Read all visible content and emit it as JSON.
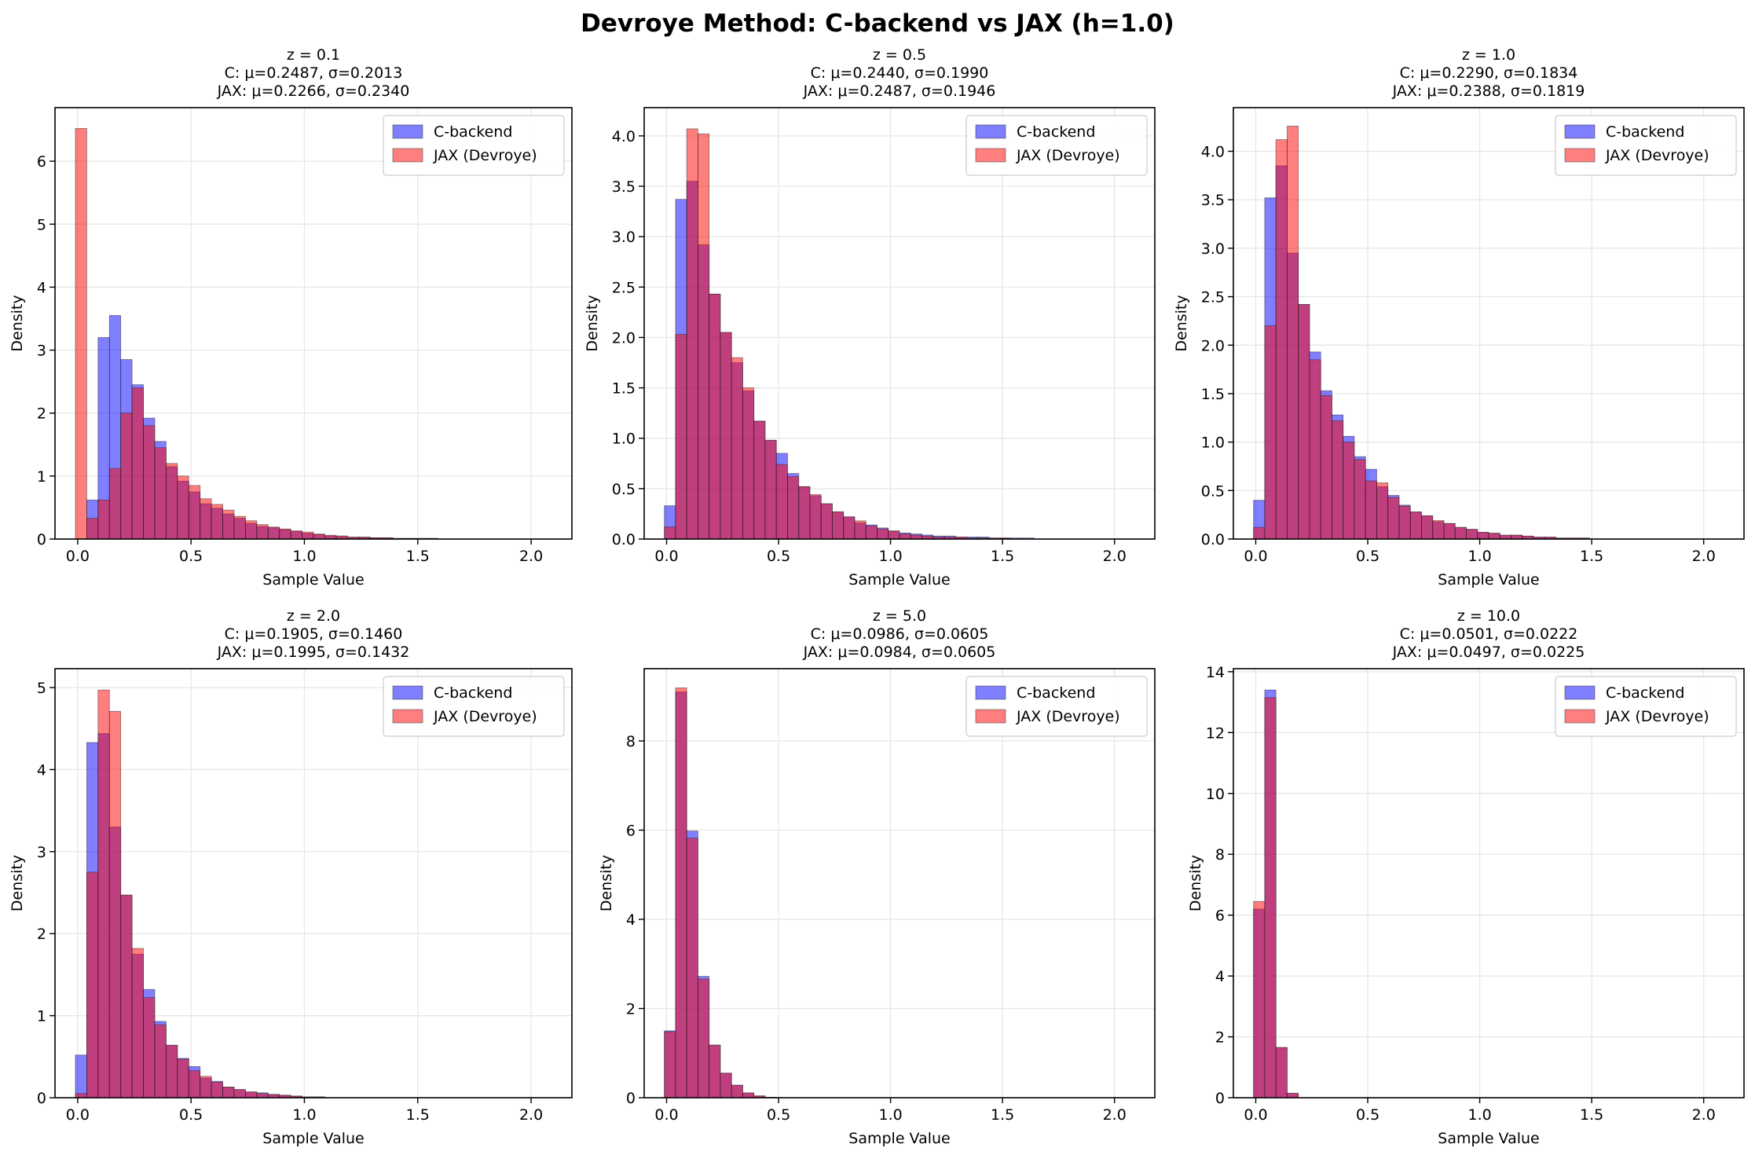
{
  "figure": {
    "suptitle": "Devroye Method: C-backend vs JAX (h=1.0)"
  },
  "colors": {
    "c_backend": "#0000ff",
    "jax": "#ff0000",
    "overlap": "#8b1a4f",
    "grid": "#e5e5e5"
  },
  "legend": [
    "C-backend",
    "JAX (Devroye)"
  ],
  "chart_data": [
    {
      "type": "bar",
      "title_lines": [
        "z = 0.1",
        "C: μ=0.2487, σ=0.2013",
        "JAX: μ=0.2266, σ=0.2340"
      ],
      "xlabel": "Sample Value",
      "ylabel": "Density",
      "xlim": [
        -0.1,
        2.18
      ],
      "ylim": [
        0,
        6.85
      ],
      "xticks": [
        0.0,
        0.5,
        1.0,
        1.5,
        2.0
      ],
      "xtick_labels": [
        "0.0",
        "0.5",
        "1.0",
        "1.5",
        "2.0"
      ],
      "yticks": [
        0,
        1,
        2,
        3,
        4,
        5,
        6
      ],
      "ytick_labels": [
        "0",
        "1",
        "2",
        "3",
        "4",
        "5",
        "6"
      ],
      "legend_position": "top-right",
      "grid": true,
      "bin_width": 0.05,
      "bin_start": -0.01,
      "series": [
        {
          "name": "C-backend",
          "values": [
            0.0,
            0.62,
            3.2,
            3.55,
            2.85,
            2.45,
            1.92,
            1.55,
            1.15,
            0.92,
            0.75,
            0.56,
            0.49,
            0.4,
            0.33,
            0.25,
            0.2,
            0.18,
            0.15,
            0.12,
            0.09,
            0.07,
            0.05,
            0.04,
            0.03,
            0.03,
            0.02,
            0.02,
            0.01,
            0.01,
            0.01,
            0.01,
            0.0,
            0.0,
            0.0,
            0.0,
            0.0,
            0.0,
            0.0,
            0.0,
            0.0,
            0.0
          ]
        },
        {
          "name": "JAX (Devroye)",
          "values": [
            6.52,
            0.33,
            0.62,
            1.12,
            2.0,
            2.4,
            1.8,
            1.45,
            1.2,
            1.0,
            0.85,
            0.64,
            0.55,
            0.46,
            0.36,
            0.29,
            0.23,
            0.19,
            0.16,
            0.13,
            0.11,
            0.08,
            0.06,
            0.05,
            0.03,
            0.03,
            0.02,
            0.02,
            0.01,
            0.01,
            0.01,
            0.01,
            0.0,
            0.0,
            0.0,
            0.0,
            0.0,
            0.0,
            0.0,
            0.0,
            0.0,
            0.0
          ]
        }
      ]
    },
    {
      "type": "bar",
      "title_lines": [
        "z = 0.5",
        "C: μ=0.2440, σ=0.1990",
        "JAX: μ=0.2487, σ=0.1946"
      ],
      "xlabel": "Sample Value",
      "ylabel": "Density",
      "xlim": [
        -0.1,
        2.18
      ],
      "ylim": [
        0,
        4.28
      ],
      "xticks": [
        0.0,
        0.5,
        1.0,
        1.5,
        2.0
      ],
      "xtick_labels": [
        "0.0",
        "0.5",
        "1.0",
        "1.5",
        "2.0"
      ],
      "yticks": [
        0.0,
        0.5,
        1.0,
        1.5,
        2.0,
        2.5,
        3.0,
        3.5,
        4.0
      ],
      "ytick_labels": [
        "0.0",
        "0.5",
        "1.0",
        "1.5",
        "2.0",
        "2.5",
        "3.0",
        "3.5",
        "4.0"
      ],
      "legend_position": "top-right",
      "grid": true,
      "bin_width": 0.05,
      "bin_start": -0.01,
      "series": [
        {
          "name": "C-backend",
          "values": [
            0.33,
            3.37,
            3.55,
            2.92,
            2.43,
            2.05,
            1.75,
            1.47,
            1.17,
            0.98,
            0.85,
            0.65,
            0.52,
            0.43,
            0.35,
            0.27,
            0.22,
            0.16,
            0.14,
            0.11,
            0.08,
            0.06,
            0.05,
            0.04,
            0.03,
            0.03,
            0.02,
            0.02,
            0.02,
            0.01,
            0.01,
            0.01,
            0.01,
            0.0,
            0.0,
            0.0,
            0.0,
            0.0,
            0.0,
            0.0,
            0.0,
            0.0
          ]
        },
        {
          "name": "JAX (Devroye)",
          "values": [
            0.12,
            2.03,
            4.07,
            4.02,
            2.43,
            2.05,
            1.8,
            1.5,
            1.17,
            0.98,
            0.74,
            0.62,
            0.52,
            0.44,
            0.35,
            0.27,
            0.22,
            0.18,
            0.13,
            0.1,
            0.08,
            0.05,
            0.04,
            0.03,
            0.02,
            0.02,
            0.02,
            0.01,
            0.01,
            0.01,
            0.01,
            0.0,
            0.0,
            0.0,
            0.0,
            0.0,
            0.0,
            0.0,
            0.0,
            0.0,
            0.0,
            0.0
          ]
        }
      ]
    },
    {
      "type": "bar",
      "title_lines": [
        "z = 1.0",
        "C: μ=0.2290, σ=0.1834",
        "JAX: μ=0.2388, σ=0.1819"
      ],
      "xlabel": "Sample Value",
      "ylabel": "Density",
      "xlim": [
        -0.1,
        2.18
      ],
      "ylim": [
        0,
        4.45
      ],
      "xticks": [
        0.0,
        0.5,
        1.0,
        1.5,
        2.0
      ],
      "xtick_labels": [
        "0.0",
        "0.5",
        "1.0",
        "1.5",
        "2.0"
      ],
      "yticks": [
        0.0,
        0.5,
        1.0,
        1.5,
        2.0,
        2.5,
        3.0,
        3.5,
        4.0
      ],
      "ytick_labels": [
        "0.0",
        "0.5",
        "1.0",
        "1.5",
        "2.0",
        "2.5",
        "3.0",
        "3.5",
        "4.0"
      ],
      "legend_position": "top-right",
      "grid": true,
      "bin_width": 0.05,
      "bin_start": -0.01,
      "series": [
        {
          "name": "C-backend",
          "values": [
            0.4,
            3.52,
            3.85,
            2.95,
            2.42,
            1.93,
            1.53,
            1.28,
            1.06,
            0.85,
            0.72,
            0.54,
            0.45,
            0.35,
            0.28,
            0.24,
            0.18,
            0.16,
            0.12,
            0.1,
            0.07,
            0.06,
            0.04,
            0.04,
            0.03,
            0.02,
            0.02,
            0.01,
            0.01,
            0.01,
            0.0,
            0.0,
            0.0,
            0.0,
            0.0,
            0.0,
            0.0,
            0.0,
            0.0,
            0.0,
            0.0,
            0.0
          ]
        },
        {
          "name": "JAX (Devroye)",
          "values": [
            0.12,
            2.2,
            4.12,
            4.26,
            2.42,
            1.85,
            1.48,
            1.22,
            1.0,
            0.82,
            0.6,
            0.58,
            0.43,
            0.34,
            0.28,
            0.24,
            0.19,
            0.16,
            0.12,
            0.1,
            0.07,
            0.06,
            0.04,
            0.04,
            0.03,
            0.02,
            0.02,
            0.01,
            0.01,
            0.01,
            0.0,
            0.0,
            0.0,
            0.0,
            0.0,
            0.0,
            0.0,
            0.0,
            0.0,
            0.0,
            0.0,
            0.0
          ]
        }
      ]
    },
    {
      "type": "bar",
      "title_lines": [
        "z = 2.0",
        "C: μ=0.1905, σ=0.1460",
        "JAX: μ=0.1995, σ=0.1432"
      ],
      "xlabel": "Sample Value",
      "ylabel": "Density",
      "xlim": [
        -0.1,
        2.18
      ],
      "ylim": [
        0,
        5.23
      ],
      "xticks": [
        0.0,
        0.5,
        1.0,
        1.5,
        2.0
      ],
      "xtick_labels": [
        "0.0",
        "0.5",
        "1.0",
        "1.5",
        "2.0"
      ],
      "yticks": [
        0,
        1,
        2,
        3,
        4,
        5
      ],
      "ytick_labels": [
        "0",
        "1",
        "2",
        "3",
        "4",
        "5"
      ],
      "legend_position": "top-right",
      "grid": true,
      "bin_width": 0.05,
      "bin_start": -0.01,
      "series": [
        {
          "name": "C-backend",
          "values": [
            0.52,
            4.33,
            4.44,
            3.3,
            2.47,
            1.75,
            1.32,
            0.93,
            0.64,
            0.48,
            0.38,
            0.24,
            0.2,
            0.13,
            0.1,
            0.07,
            0.06,
            0.04,
            0.03,
            0.02,
            0.01,
            0.01,
            0.0,
            0.0,
            0.0,
            0.0,
            0.0,
            0.0,
            0.0,
            0.0,
            0.0,
            0.0,
            0.0,
            0.0,
            0.0,
            0.0,
            0.0,
            0.0,
            0.0,
            0.0,
            0.0,
            0.0
          ]
        },
        {
          "name": "JAX (Devroye)",
          "values": [
            0.05,
            2.75,
            4.97,
            4.71,
            2.47,
            1.82,
            1.22,
            0.89,
            0.64,
            0.47,
            0.33,
            0.26,
            0.19,
            0.13,
            0.1,
            0.07,
            0.05,
            0.04,
            0.03,
            0.02,
            0.01,
            0.01,
            0.0,
            0.0,
            0.0,
            0.0,
            0.0,
            0.0,
            0.0,
            0.0,
            0.0,
            0.0,
            0.0,
            0.0,
            0.0,
            0.0,
            0.0,
            0.0,
            0.0,
            0.0,
            0.0,
            0.0
          ]
        }
      ]
    },
    {
      "type": "bar",
      "title_lines": [
        "z = 5.0",
        "C: μ=0.0986, σ=0.0605",
        "JAX: μ=0.0984, σ=0.0605"
      ],
      "xlabel": "Sample Value",
      "ylabel": "Density",
      "xlim": [
        -0.1,
        2.18
      ],
      "ylim": [
        0,
        9.62
      ],
      "xticks": [
        0.0,
        0.5,
        1.0,
        1.5,
        2.0
      ],
      "xtick_labels": [
        "0.0",
        "0.5",
        "1.0",
        "1.5",
        "2.0"
      ],
      "yticks": [
        0,
        2,
        4,
        6,
        8
      ],
      "ytick_labels": [
        "0",
        "2",
        "4",
        "6",
        "8"
      ],
      "legend_position": "top-right",
      "grid": true,
      "bin_width": 0.05,
      "bin_start": -0.01,
      "series": [
        {
          "name": "C-backend",
          "values": [
            1.5,
            9.1,
            5.98,
            2.72,
            1.18,
            0.55,
            0.28,
            0.1,
            0.04,
            0.01,
            0.0,
            0.0,
            0.0,
            0.0,
            0.0,
            0.0,
            0.0,
            0.0,
            0.0,
            0.0,
            0.0,
            0.0,
            0.0,
            0.0,
            0.0,
            0.0,
            0.0,
            0.0,
            0.0,
            0.0,
            0.0,
            0.0,
            0.0,
            0.0,
            0.0,
            0.0,
            0.0,
            0.0,
            0.0,
            0.0,
            0.0,
            0.0
          ]
        },
        {
          "name": "JAX (Devroye)",
          "values": [
            1.48,
            9.19,
            5.82,
            2.66,
            1.18,
            0.55,
            0.28,
            0.11,
            0.04,
            0.01,
            0.0,
            0.0,
            0.0,
            0.0,
            0.0,
            0.0,
            0.0,
            0.0,
            0.0,
            0.0,
            0.0,
            0.0,
            0.0,
            0.0,
            0.0,
            0.0,
            0.0,
            0.0,
            0.0,
            0.0,
            0.0,
            0.0,
            0.0,
            0.0,
            0.0,
            0.0,
            0.0,
            0.0,
            0.0,
            0.0,
            0.0,
            0.0
          ]
        }
      ]
    },
    {
      "type": "bar",
      "title_lines": [
        "z = 10.0",
        "C: μ=0.0501, σ=0.0222",
        "JAX: μ=0.0497, σ=0.0225"
      ],
      "xlabel": "Sample Value",
      "ylabel": "Density",
      "xlim": [
        -0.1,
        2.18
      ],
      "ylim": [
        0,
        14.1
      ],
      "xticks": [
        0.0,
        0.5,
        1.0,
        1.5,
        2.0
      ],
      "xtick_labels": [
        "0.0",
        "0.5",
        "1.0",
        "1.5",
        "2.0"
      ],
      "yticks": [
        0,
        2,
        4,
        6,
        8,
        10,
        12,
        14
      ],
      "ytick_labels": [
        "0",
        "2",
        "4",
        "6",
        "8",
        "10",
        "12",
        "14"
      ],
      "legend_position": "top-right",
      "grid": true,
      "bin_width": 0.05,
      "bin_start": -0.01,
      "series": [
        {
          "name": "C-backend",
          "values": [
            6.2,
            13.4,
            1.65,
            0.14,
            0.0,
            0.0,
            0.0,
            0.0,
            0.0,
            0.0,
            0.0,
            0.0,
            0.0,
            0.0,
            0.0,
            0.0,
            0.0,
            0.0,
            0.0,
            0.0,
            0.0,
            0.0,
            0.0,
            0.0,
            0.0,
            0.0,
            0.0,
            0.0,
            0.0,
            0.0,
            0.0,
            0.0,
            0.0,
            0.0,
            0.0,
            0.0,
            0.0,
            0.0,
            0.0,
            0.0,
            0.0,
            0.0
          ]
        },
        {
          "name": "JAX (Devroye)",
          "values": [
            6.45,
            13.15,
            1.65,
            0.15,
            0.0,
            0.0,
            0.0,
            0.0,
            0.0,
            0.0,
            0.0,
            0.0,
            0.0,
            0.0,
            0.0,
            0.0,
            0.0,
            0.0,
            0.0,
            0.0,
            0.0,
            0.0,
            0.0,
            0.0,
            0.0,
            0.0,
            0.0,
            0.0,
            0.0,
            0.0,
            0.0,
            0.0,
            0.0,
            0.0,
            0.0,
            0.0,
            0.0,
            0.0,
            0.0,
            0.0,
            0.0,
            0.0
          ]
        }
      ]
    }
  ]
}
